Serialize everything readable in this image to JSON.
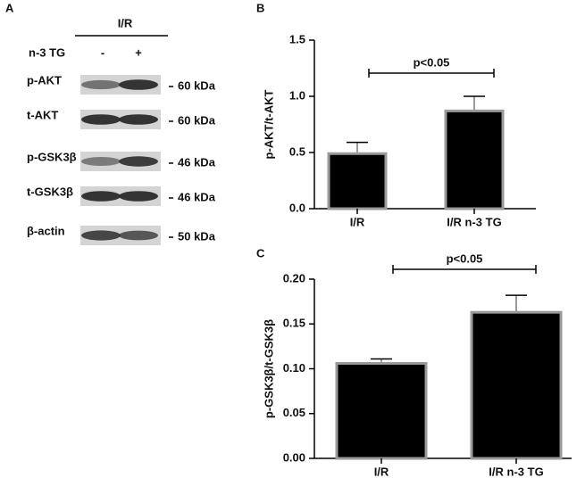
{
  "blot": {
    "panel_label": "A",
    "group": "I/R",
    "treatment": {
      "label": "n-3 TG",
      "levels": [
        "-",
        "+"
      ]
    },
    "rows": [
      {
        "label": "p-AKT",
        "size": "60 kDa"
      },
      {
        "label": "t-AKT",
        "size": "60 kDa"
      },
      {
        "label": "p-GSK3β",
        "size": "46 kDa"
      },
      {
        "label": "t-GSK3β",
        "size": "46 kDa"
      },
      {
        "label": "β-actin",
        "size": "50 kDa"
      }
    ]
  },
  "chart_data": [
    {
      "type": "bar",
      "panel_label": "B",
      "y_label": "p-AKT/t-AKT",
      "annotation": "p<0.05",
      "categories": [
        "I/R",
        "I/R n-3 TG"
      ],
      "values": [
        0.49,
        0.87
      ],
      "errors": [
        0.1,
        0.13
      ],
      "color": "#000000",
      "edge_color": "#9a9a9a",
      "ylim": [
        0,
        1.5
      ],
      "yticks": [
        {
          "value": 0,
          "label": "0.0"
        },
        0.5,
        {
          "value": 1,
          "label": "1.0"
        },
        1.5
      ]
    },
    {
      "type": "bar",
      "panel_label": "C",
      "y_label": "p-GSK3β/t-GSK3β",
      "annotation": "p<0.05",
      "categories": [
        "I/R",
        "I/R n-3 TG"
      ],
      "values": [
        0.106,
        0.163
      ],
      "errors": [
        0.005,
        0.019
      ],
      "color": "#000000",
      "edge_color": "#9a9a9a",
      "ylim": [
        0,
        0.2
      ],
      "yticks": [
        {
          "value": 0,
          "label": "0.00"
        },
        {
          "value": 0.05,
          "label": "0.05"
        },
        {
          "value": 0.1,
          "label": "0.10"
        },
        {
          "value": 0.15,
          "label": "0.15"
        },
        {
          "value": 0.2,
          "label": "0.20"
        }
      ]
    }
  ]
}
